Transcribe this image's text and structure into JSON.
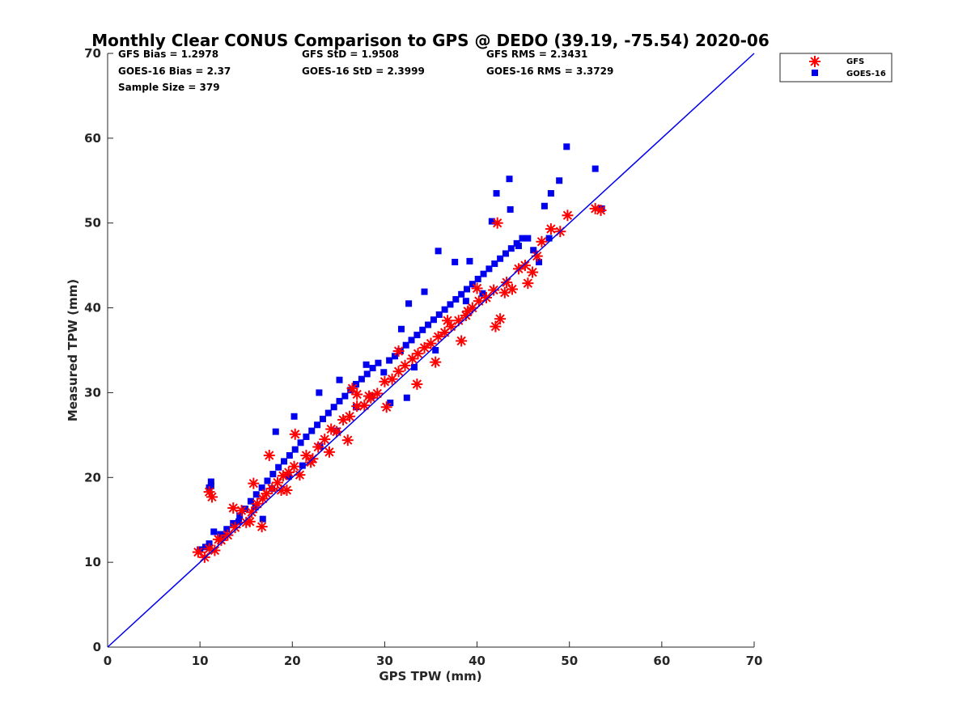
{
  "chart_data": {
    "type": "scatter",
    "title": "Monthly Clear CONUS Comparison to GPS @ DEDO (39.19, -75.54) 2020-06",
    "xlabel": "GPS TPW (mm)",
    "ylabel": "Measured TPW (mm)",
    "xlim": [
      0,
      70
    ],
    "ylim": [
      0,
      70
    ],
    "xticks": [
      "0",
      "10",
      "20",
      "30",
      "40",
      "50",
      "60",
      "70"
    ],
    "yticks": [
      "0",
      "10",
      "20",
      "30",
      "40",
      "50",
      "60",
      "70"
    ],
    "grid": false,
    "legend_position": "top-right outside",
    "stats": {
      "gfs_bias": "GFS Bias = 1.2978",
      "gfs_std": "GFS StD = 1.9508",
      "gfs_rms": "GFS RMS = 2.3431",
      "goes_bias": "GOES-16 Bias = 2.37",
      "goes_std": "GOES-16 StD = 2.3999",
      "goes_rms": "GOES-16 RMS = 3.3729",
      "sample_size": "Sample Size = 379"
    },
    "reference_line": {
      "x": [
        0,
        70
      ],
      "y": [
        0,
        70
      ],
      "color": "#0000ee"
    },
    "series": [
      {
        "name": "GFS",
        "marker": "asterisk",
        "color": "#ff0000",
        "x": [
          9.8,
          10.5,
          11.0,
          11.3,
          11.0,
          11.6,
          12.3,
          13.0,
          13.8,
          14.5,
          15.0,
          15.6,
          16.2,
          16.8,
          15.4,
          17.2,
          17.8,
          18.4,
          19.0,
          19.6,
          18.8,
          20.2,
          20.8,
          21.5,
          22.2,
          22.8,
          23.5,
          24.2,
          24.8,
          25.5,
          26.2,
          26.0,
          27.0,
          27.8,
          28.5,
          29.2,
          30.0,
          30.8,
          31.5,
          32.2,
          33.0,
          33.6,
          34.3,
          35.0,
          35.8,
          36.5,
          37.2,
          38.0,
          38.8,
          39.5,
          40.2,
          41.0,
          41.8,
          42.0,
          42.5,
          43.2,
          43.8,
          44.5,
          45.2,
          46.0,
          47.0,
          48.0,
          49.0,
          49.8,
          52.8,
          53.4,
          16.7,
          20.3,
          27.0,
          31.5,
          35.5,
          38.3,
          40.0,
          45.5,
          46.5,
          43.0,
          42.2,
          39.0,
          36.8,
          33.5,
          30.2,
          28.3,
          26.5,
          24.0,
          22.0,
          19.4,
          17.5,
          15.8,
          13.6,
          12.0
        ],
        "y": [
          11.2,
          10.6,
          11.6,
          17.7,
          18.3,
          11.4,
          12.6,
          13.2,
          14.1,
          16.1,
          14.7,
          15.9,
          16.9,
          17.5,
          14.8,
          18.1,
          18.7,
          19.4,
          20.2,
          20.6,
          18.5,
          21.3,
          20.3,
          22.6,
          22.2,
          23.6,
          24.5,
          25.7,
          25.4,
          26.8,
          27.2,
          24.4,
          28.4,
          28.5,
          29.4,
          29.9,
          31.3,
          31.6,
          32.5,
          33.2,
          34.0,
          34.6,
          35.3,
          35.8,
          36.6,
          37.1,
          37.8,
          38.5,
          39.1,
          40.0,
          40.8,
          41.2,
          42.1,
          37.8,
          38.7,
          43.0,
          42.2,
          44.6,
          45.0,
          44.2,
          47.8,
          49.3,
          49.0,
          50.9,
          51.7,
          51.5,
          14.2,
          25.1,
          29.8,
          34.9,
          33.6,
          36.1,
          42.3,
          42.9,
          46.1,
          41.8,
          50.0,
          39.6,
          38.5,
          31.0,
          28.3,
          29.6,
          30.5,
          23.0,
          21.8,
          18.5,
          22.6,
          19.3,
          16.4,
          12.7
        ]
      },
      {
        "name": "GOES-16",
        "marker": "square",
        "color": "#0000ee",
        "x": [
          10.0,
          10.6,
          11.0,
          11.2,
          11.5,
          12.2,
          12.9,
          13.6,
          14.3,
          14.9,
          15.5,
          16.1,
          16.7,
          17.3,
          17.9,
          18.5,
          19.1,
          19.7,
          20.3,
          20.9,
          21.5,
          22.1,
          22.7,
          23.3,
          23.9,
          24.5,
          25.1,
          25.7,
          26.3,
          26.9,
          27.5,
          28.1,
          28.7,
          29.3,
          29.9,
          30.5,
          31.1,
          31.7,
          32.3,
          32.9,
          33.5,
          34.1,
          34.7,
          35.3,
          35.9,
          36.5,
          37.1,
          37.7,
          38.3,
          38.9,
          39.5,
          40.1,
          40.7,
          41.3,
          41.9,
          42.5,
          43.1,
          43.7,
          44.3,
          44.9,
          45.5,
          46.1,
          46.7,
          47.3,
          48.0,
          48.9,
          49.7,
          52.8,
          53.5,
          11.0,
          11.2,
          16.8,
          18.2,
          20.2,
          22.9,
          25.1,
          28.0,
          31.8,
          32.6,
          34.3,
          35.8,
          37.6,
          39.2,
          41.6,
          42.1,
          43.5,
          43.6,
          44.5,
          47.8,
          35.5,
          33.2,
          32.4,
          30.6,
          28.6,
          26.9,
          24.8,
          23.0,
          21.1,
          19.6,
          17.8,
          16.0,
          14.2,
          12.5,
          38.8,
          40.6
        ],
        "y": [
          11.5,
          11.8,
          12.2,
          19.5,
          13.6,
          13.3,
          13.9,
          14.6,
          15.5,
          16.3,
          17.2,
          18.0,
          18.8,
          19.6,
          20.4,
          21.2,
          21.9,
          22.6,
          23.3,
          24.1,
          24.8,
          25.5,
          26.2,
          26.9,
          27.6,
          28.3,
          29.0,
          29.6,
          30.3,
          31.0,
          31.6,
          32.2,
          32.9,
          33.5,
          32.4,
          33.8,
          34.3,
          34.9,
          35.6,
          36.2,
          36.8,
          37.4,
          38.0,
          38.6,
          39.2,
          39.8,
          40.4,
          41.0,
          41.6,
          42.2,
          42.8,
          43.4,
          44.0,
          44.6,
          45.2,
          45.8,
          46.4,
          47.0,
          47.6,
          48.2,
          48.2,
          46.8,
          45.4,
          52.0,
          53.5,
          55.0,
          59.0,
          56.4,
          51.7,
          18.8,
          19.0,
          15.1,
          25.4,
          27.2,
          30.0,
          31.5,
          33.3,
          37.5,
          40.5,
          41.9,
          46.7,
          45.4,
          45.5,
          50.2,
          53.5,
          55.2,
          51.6,
          47.3,
          48.2,
          35.0,
          33.0,
          29.4,
          28.8,
          29.6,
          28.3,
          25.5,
          23.7,
          21.4,
          20.1,
          18.7,
          16.5,
          14.8,
          13.1,
          40.8,
          41.7
        ]
      }
    ]
  }
}
